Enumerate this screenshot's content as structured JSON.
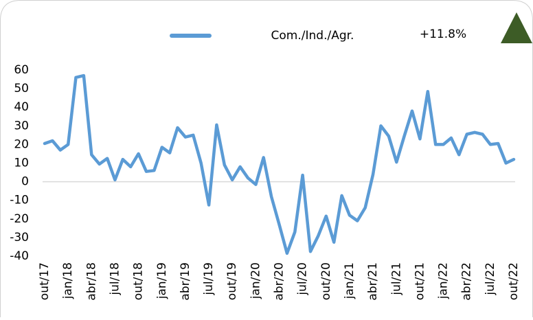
{
  "chart_data": {
    "type": "line",
    "series": [
      {
        "name": "Com./Ind./Agr.",
        "color": "#5b9bd5",
        "values": [
          20.5,
          22,
          17,
          20,
          56,
          57,
          14.5,
          9.5,
          12.5,
          1,
          12,
          8,
          15,
          5.5,
          6,
          18.5,
          15.5,
          29,
          24,
          25,
          10,
          -12.5,
          30.5,
          9,
          1,
          8,
          2,
          -1.5,
          13,
          -8,
          -23,
          -38.5,
          -27,
          3.5,
          -37.5,
          -29,
          -18.5,
          -32.5,
          -7.5,
          -18,
          -21,
          -14,
          4,
          30,
          24.5,
          10.5,
          24.5,
          38,
          23,
          48.5,
          20,
          20,
          23.5,
          14.5,
          25.5,
          26.5,
          25.5,
          20,
          20.5,
          10,
          12
        ]
      }
    ],
    "categories": [
      "out/17",
      null,
      null,
      "jan/18",
      null,
      null,
      "abr/18",
      null,
      null,
      "jul/18",
      null,
      null,
      "out/18",
      null,
      null,
      "jan/19",
      null,
      null,
      "abr/19",
      null,
      null,
      "jul/19",
      null,
      null,
      "out/19",
      null,
      null,
      "jan/20",
      null,
      null,
      "abr/20",
      null,
      null,
      "jul/20",
      null,
      null,
      "out/20",
      null,
      null,
      "jan/21",
      null,
      null,
      "abr/21",
      null,
      null,
      "jul/21",
      null,
      null,
      "out/21",
      null,
      null,
      "jan/22",
      null,
      null,
      "abr/22",
      null,
      null,
      "jul/22",
      null,
      null,
      "out/22"
    ],
    "annotation": "+11.8%",
    "ylim": [
      -40,
      60
    ],
    "yticks": [
      -40,
      -30,
      -20,
      -10,
      0,
      10,
      20,
      30,
      40,
      50,
      60
    ]
  }
}
